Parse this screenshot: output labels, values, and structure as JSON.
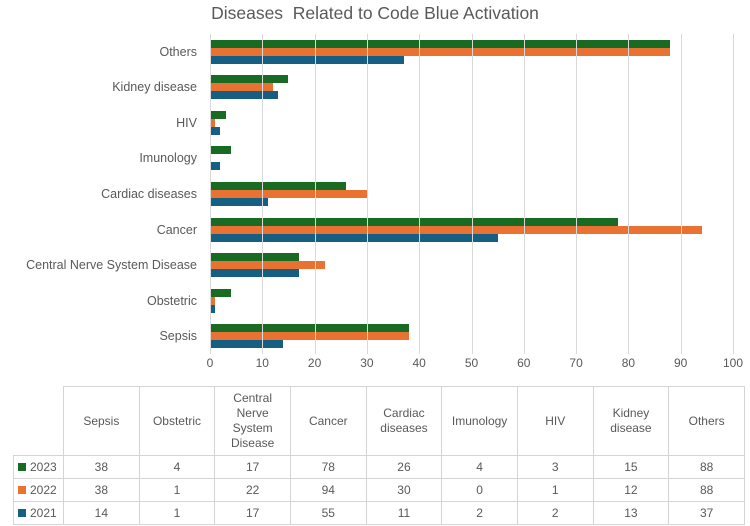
{
  "title": "Diseases  Related to Code Blue Activation",
  "chart_data": {
    "type": "bar",
    "orientation": "horizontal",
    "title": "Diseases  Related to Code Blue Activation",
    "categories": [
      "Sepsis",
      "Obstetric",
      "Central Nerve System Disease",
      "Cancer",
      "Cardiac diseases",
      "Imunology",
      "HIV",
      "Kidney disease",
      "Others"
    ],
    "series": [
      {
        "name": "2023",
        "color": "#196B24",
        "values": [
          38,
          4,
          17,
          78,
          26,
          4,
          3,
          15,
          88
        ]
      },
      {
        "name": "2022",
        "color": "#E97132",
        "values": [
          38,
          1,
          22,
          94,
          30,
          0,
          1,
          12,
          88
        ]
      },
      {
        "name": "2021",
        "color": "#156082",
        "values": [
          14,
          1,
          17,
          55,
          11,
          2,
          2,
          13,
          37
        ]
      }
    ],
    "xlim": [
      0,
      100
    ],
    "x_ticks": [
      "0",
      "10",
      "20",
      "30",
      "40",
      "50",
      "60",
      "70",
      "80",
      "90",
      "100"
    ],
    "grid": "vertical gridlines on",
    "category_axis_order": "reversed (Others at top, Sepsis at bottom)",
    "legend_position": "table row headers"
  },
  "table": {
    "corner_label": "",
    "columns": [
      "Sepsis",
      "Obstetric",
      "Central Nerve System Disease",
      "Cancer",
      "Cardiac diseases",
      "Imunology",
      "HIV",
      "Kidney disease",
      "Others"
    ],
    "rows": [
      {
        "label": "2023",
        "marker_color": "#196B24",
        "values": [
          "38",
          "4",
          "17",
          "78",
          "26",
          "4",
          "3",
          "15",
          "88"
        ]
      },
      {
        "label": "2022",
        "marker_color": "#E97132",
        "values": [
          "38",
          "1",
          "22",
          "94",
          "30",
          "0",
          "1",
          "12",
          "88"
        ]
      },
      {
        "label": "2021",
        "marker_color": "#156082",
        "values": [
          "14",
          "1",
          "17",
          "55",
          "11",
          "2",
          "2",
          "13",
          "37"
        ]
      }
    ]
  }
}
